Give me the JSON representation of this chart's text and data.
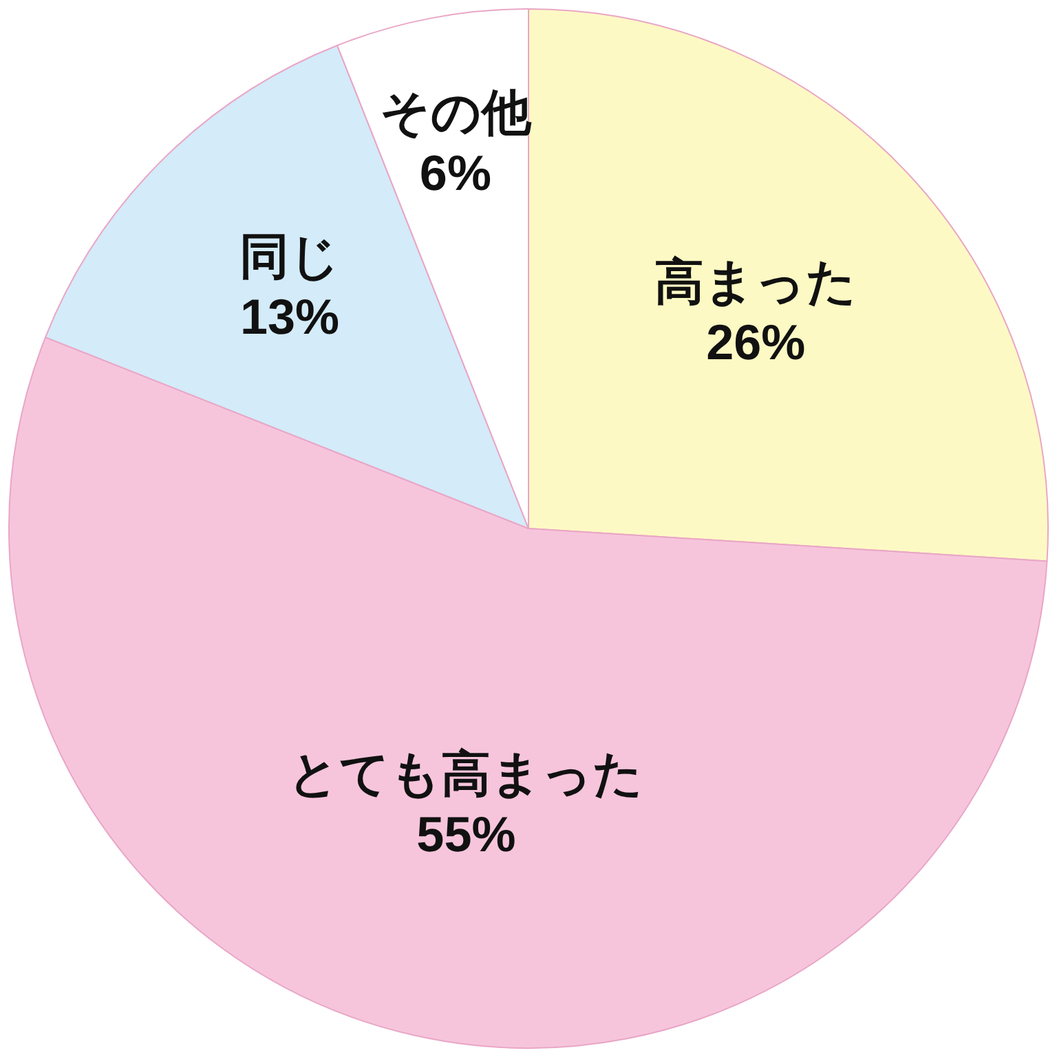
{
  "chart_data": {
    "type": "pie",
    "categories": [
      "高まった",
      "とても高まった",
      "同じ",
      "その他"
    ],
    "values": [
      26,
      55,
      13,
      6
    ],
    "colors": [
      "#fdf9c4",
      "#f6c5dc",
      "#d4ebf9",
      "#ffffff"
    ],
    "value_labels": [
      "26%",
      "55%",
      "13%",
      "6%"
    ],
    "legend": false
  }
}
